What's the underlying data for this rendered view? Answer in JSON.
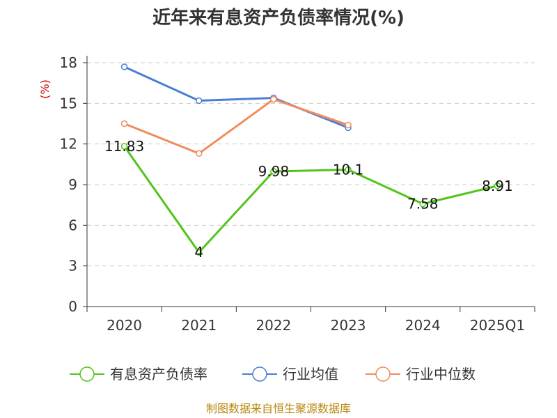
{
  "chart_data": {
    "type": "line",
    "title": "近年来有息资产负债率情况(%)",
    "unit": "(%)",
    "categories": [
      "2020",
      "2021",
      "2022",
      "2023",
      "2024",
      "2025Q1"
    ],
    "ylim": [
      0,
      18
    ],
    "yticks": [
      "0",
      "3",
      "6",
      "9",
      "12",
      "15",
      "18"
    ],
    "grid": true,
    "legend_position": "bottom",
    "series": [
      {
        "name": "有息资产负债率",
        "color": "#52c41a",
        "values": [
          11.83,
          4,
          9.98,
          10.1,
          7.58,
          8.91
        ],
        "labels": [
          "11.83",
          "4",
          "9.98",
          "10.1",
          "7.58",
          "8.91"
        ]
      },
      {
        "name": "行业均值",
        "color": "#4a7fd4",
        "values": [
          17.7,
          15.2,
          15.4,
          13.2,
          null,
          null
        ]
      },
      {
        "name": "行业中位数",
        "color": "#f08c5c",
        "values": [
          13.5,
          11.3,
          15.3,
          13.4,
          null,
          null
        ]
      }
    ],
    "source": "制图数据来自恒生聚源数据库"
  }
}
